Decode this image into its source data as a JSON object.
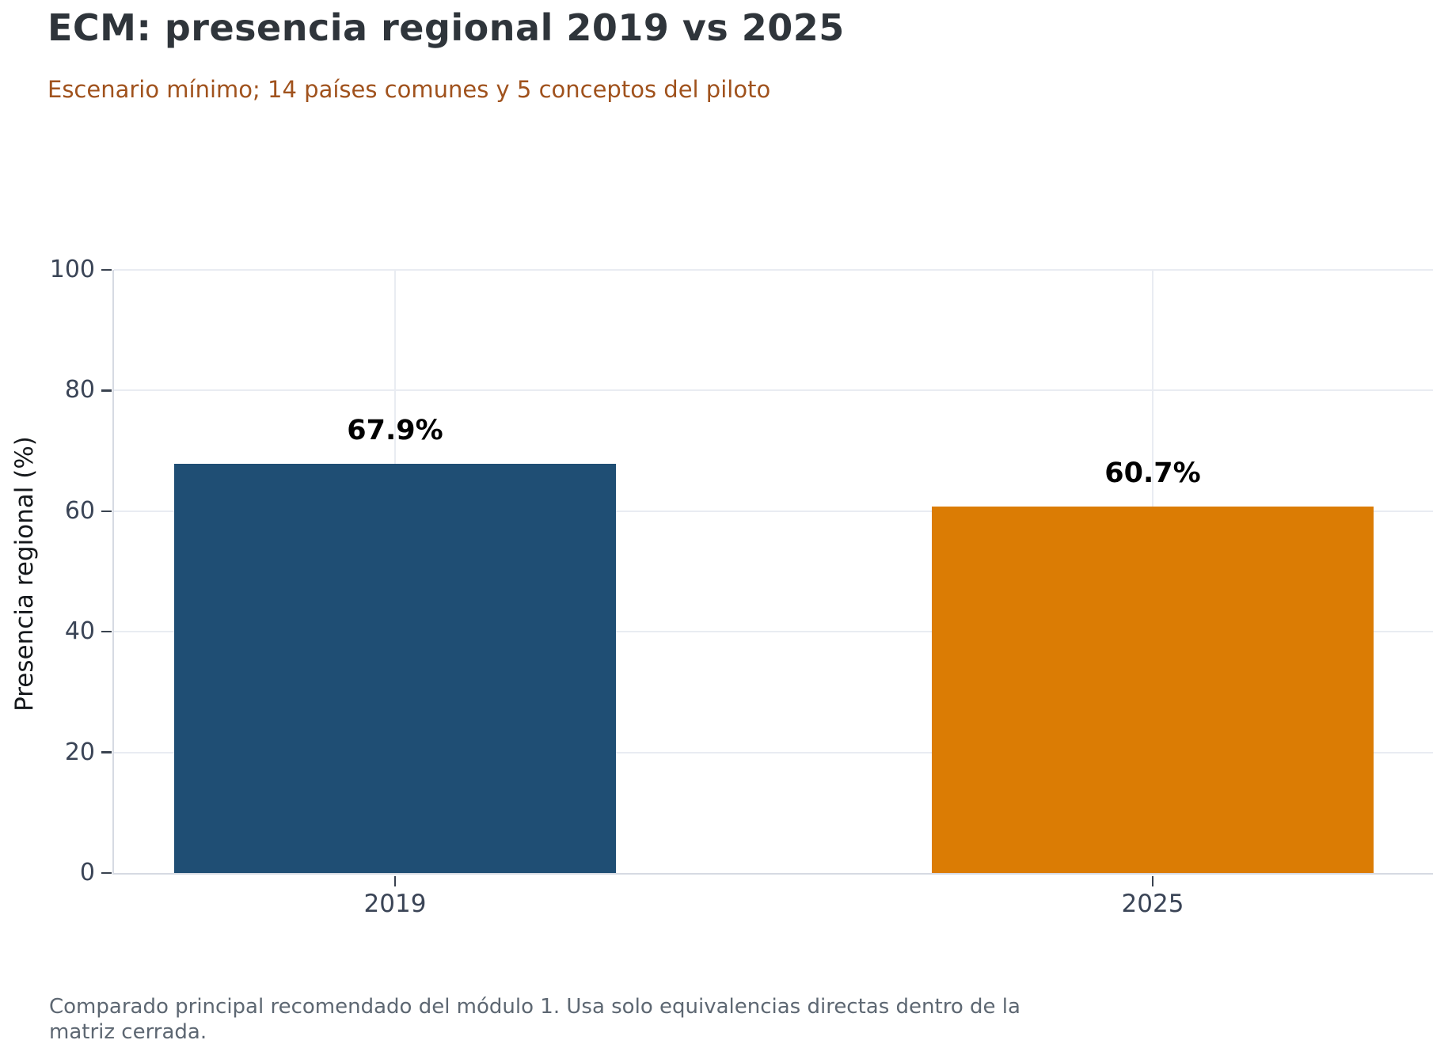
{
  "chart_data": {
    "type": "bar",
    "title": "ECM: presencia regional 2019 vs 2025",
    "subtitle": "Escenario mínimo; 14 países comunes y 5 conceptos del piloto",
    "categories": [
      "2019",
      "2025"
    ],
    "values": [
      67.9,
      60.7
    ],
    "value_labels": [
      "67.9%",
      "60.7%"
    ],
    "bar_colors": [
      "#1f4e74",
      "#db7c04"
    ],
    "xlabel": "",
    "ylabel": "Presencia regional (%)",
    "ylim": [
      0,
      100
    ],
    "yticks": [
      0,
      20,
      40,
      60,
      80,
      100
    ],
    "grid": true,
    "legend": false,
    "footnote": "Comparado principal recomendado del módulo 1. Usa solo equivalencias directas dentro de la matriz cerrada."
  },
  "colors": {
    "background": "#ffffff",
    "title": "#2f353b",
    "subtitle": "#a0521d",
    "tick_label": "#3a4456",
    "tick_mark": "#39424f",
    "axis_label": "#15181b",
    "spine": "#d6dae3",
    "gridline": "#e9ecf2",
    "value_label": "#000000",
    "footnote": "#5d6772"
  }
}
